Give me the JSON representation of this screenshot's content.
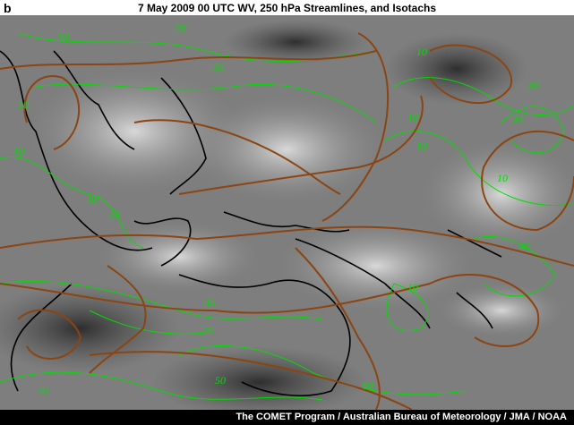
{
  "panel_label": "b",
  "title": "7 May 2009 00 UTC  WV, 250 hPa Streamlines, and Isotachs",
  "credit": "The COMET Program / Australian Bureau of Meteorology / JMA / NOAA",
  "colors": {
    "streamlines": "#8B4513",
    "isotachs": "#00dd00",
    "coastlines": "#000000",
    "background": "#808080"
  },
  "isotach_labels": [
    "50",
    "70",
    "50",
    "10",
    "10",
    "10",
    "30",
    "30",
    "10",
    "10",
    "10",
    "10",
    "40",
    "10",
    "30",
    "70",
    "50",
    "70",
    "90",
    "10"
  ]
}
